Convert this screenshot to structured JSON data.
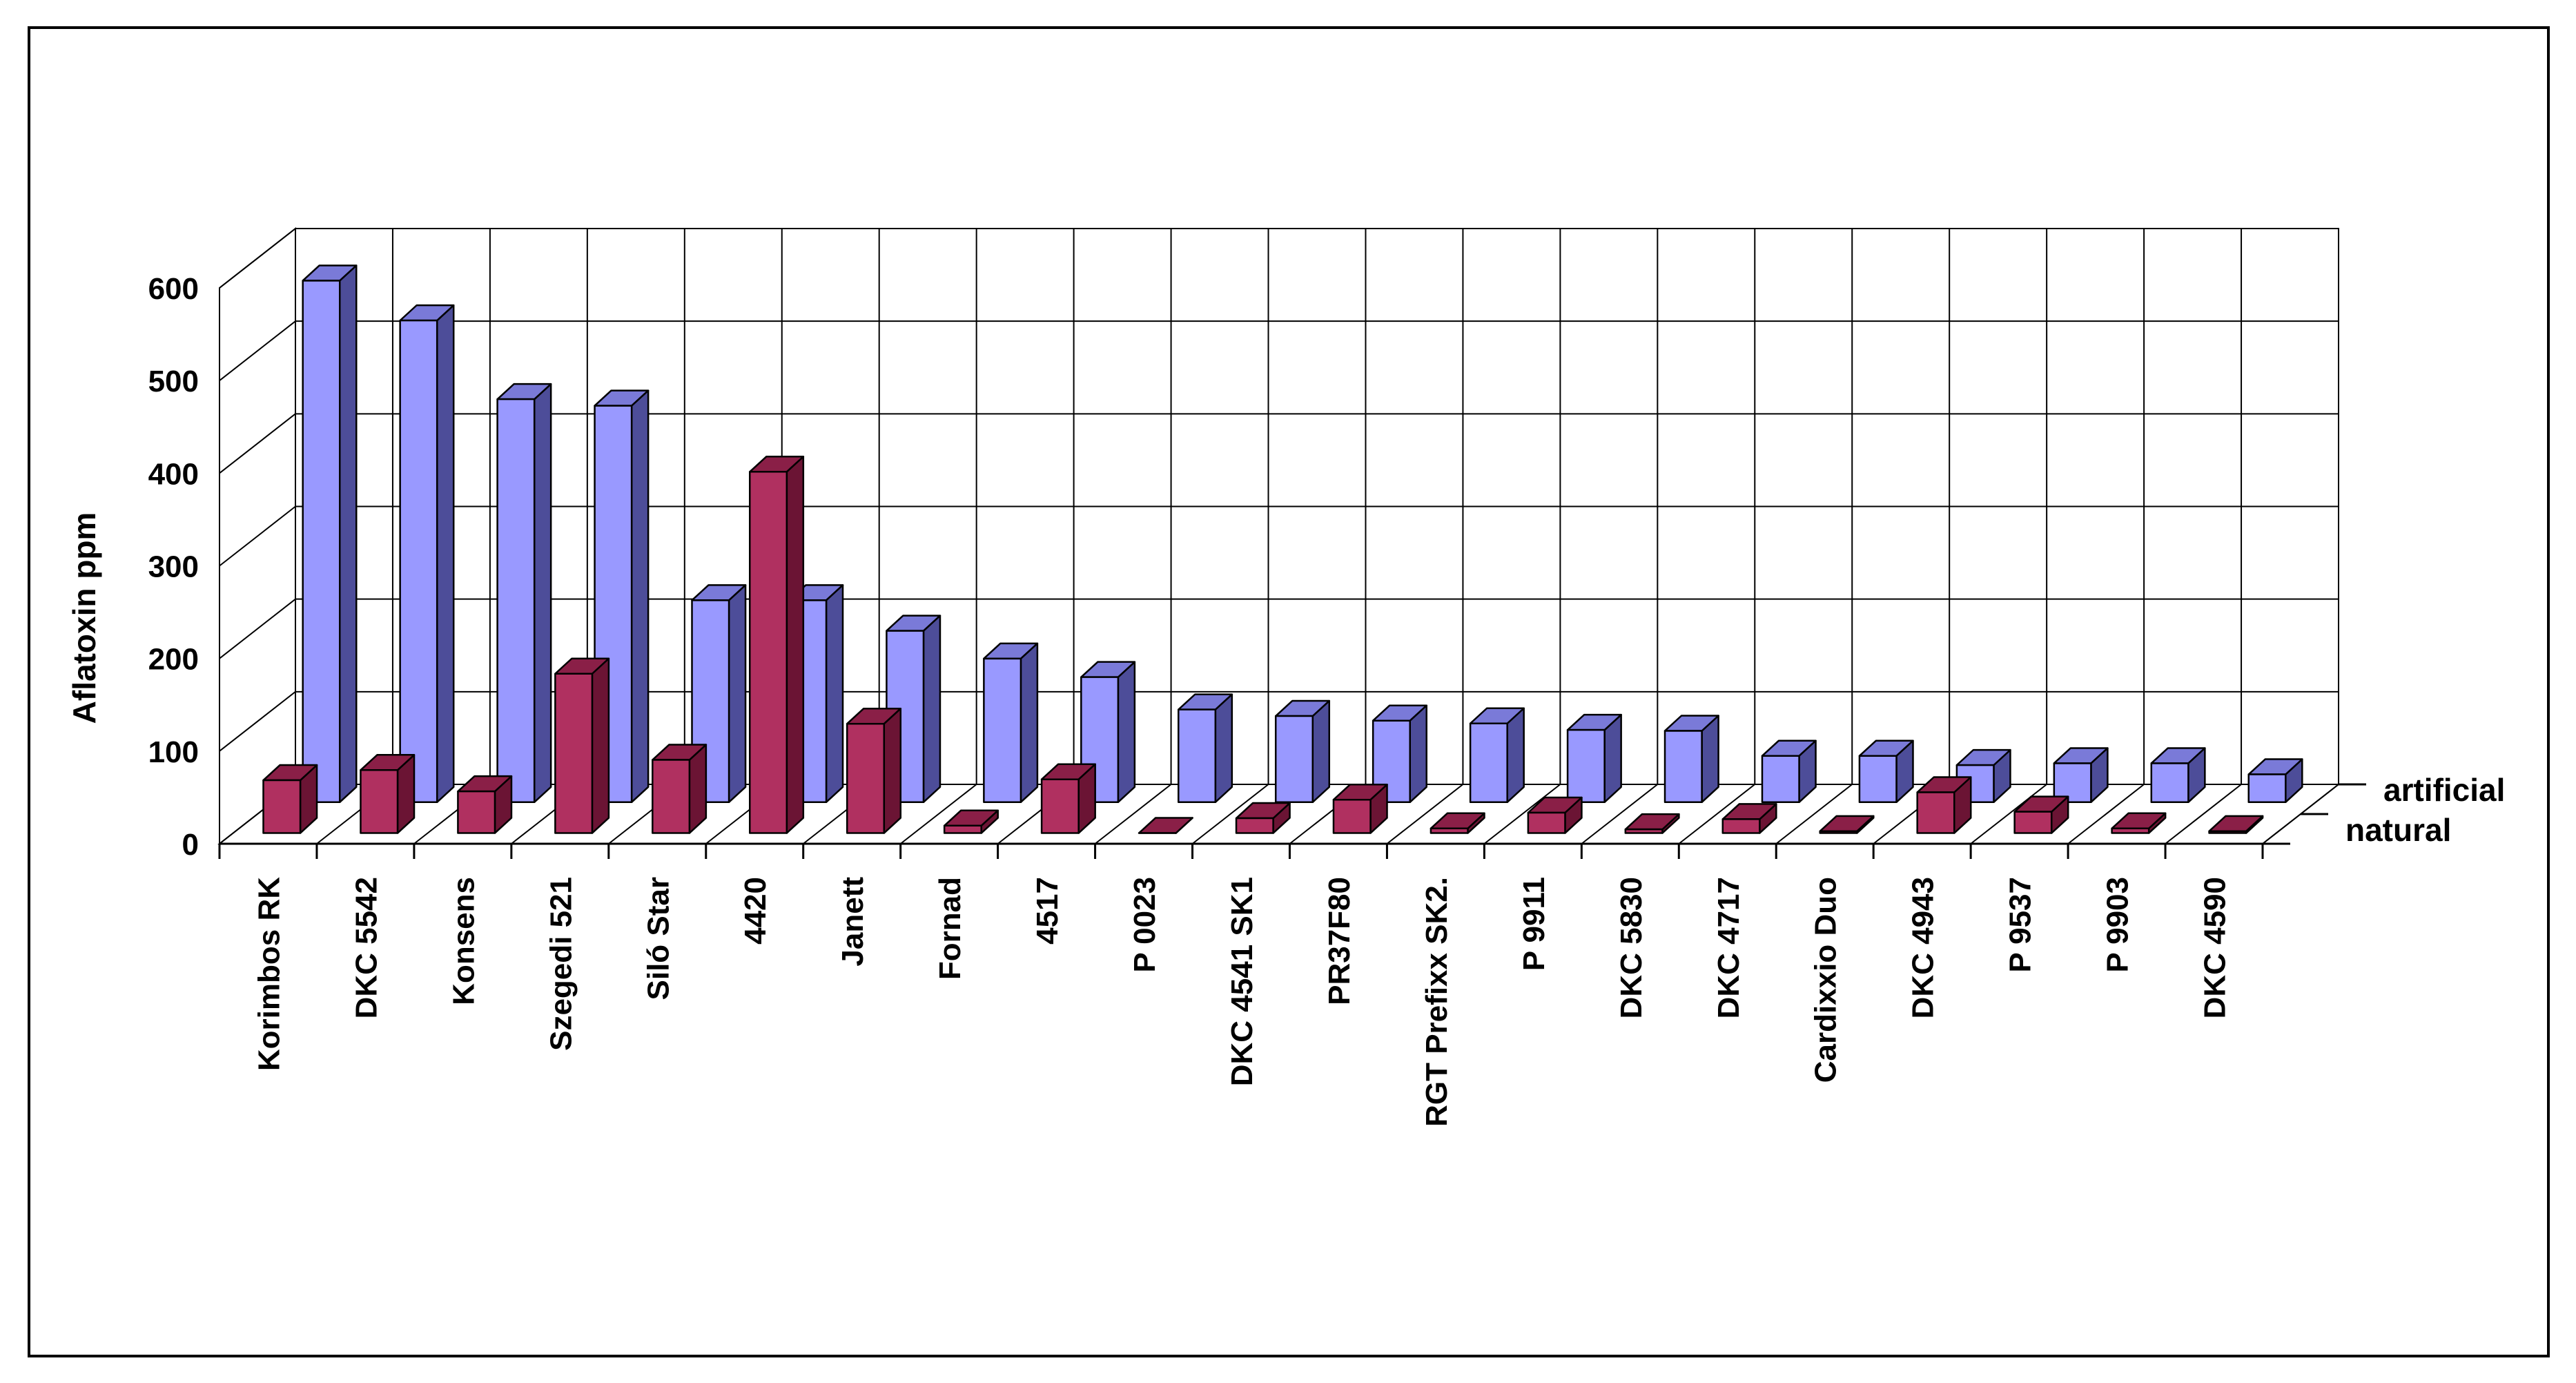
{
  "chart_data": {
    "type": "bar",
    "title": "",
    "xlabel": "",
    "ylabel": "Aflatoxin ppm",
    "ylim": [
      0,
      600
    ],
    "yticks": [
      0,
      100,
      200,
      300,
      400,
      500,
      600
    ],
    "grid": true,
    "categories": [
      "Korimbos RK",
      "DKC 5542",
      "Konsens",
      "Szegedi 521",
      "Siló Star",
      "4420",
      "Janett",
      "Fornad",
      "4517",
      "P 0023",
      "DKC 4541 SK1",
      "PR37F80",
      "RGT Prefixx SK2.",
      "P 9911",
      "DKC 5830",
      "DKC 4717",
      "Cardixxio Duo",
      "DKC 4943",
      "P 9537",
      "P 9903",
      "DKC 4590"
    ],
    "series": [
      {
        "name": "natural",
        "color": "#b03060",
        "values": [
          57,
          68,
          45,
          172,
          79,
          390,
          118,
          8,
          58,
          0,
          16,
          36,
          5,
          22,
          4,
          15,
          2,
          44,
          23,
          5,
          2
        ]
      },
      {
        "name": "artificial",
        "color": "#9999ff",
        "values": [
          563,
          520,
          435,
          428,
          218,
          218,
          185,
          155,
          135,
          100,
          93,
          88,
          85,
          78,
          77,
          50,
          50,
          40,
          42,
          42,
          30
        ]
      }
    ]
  }
}
